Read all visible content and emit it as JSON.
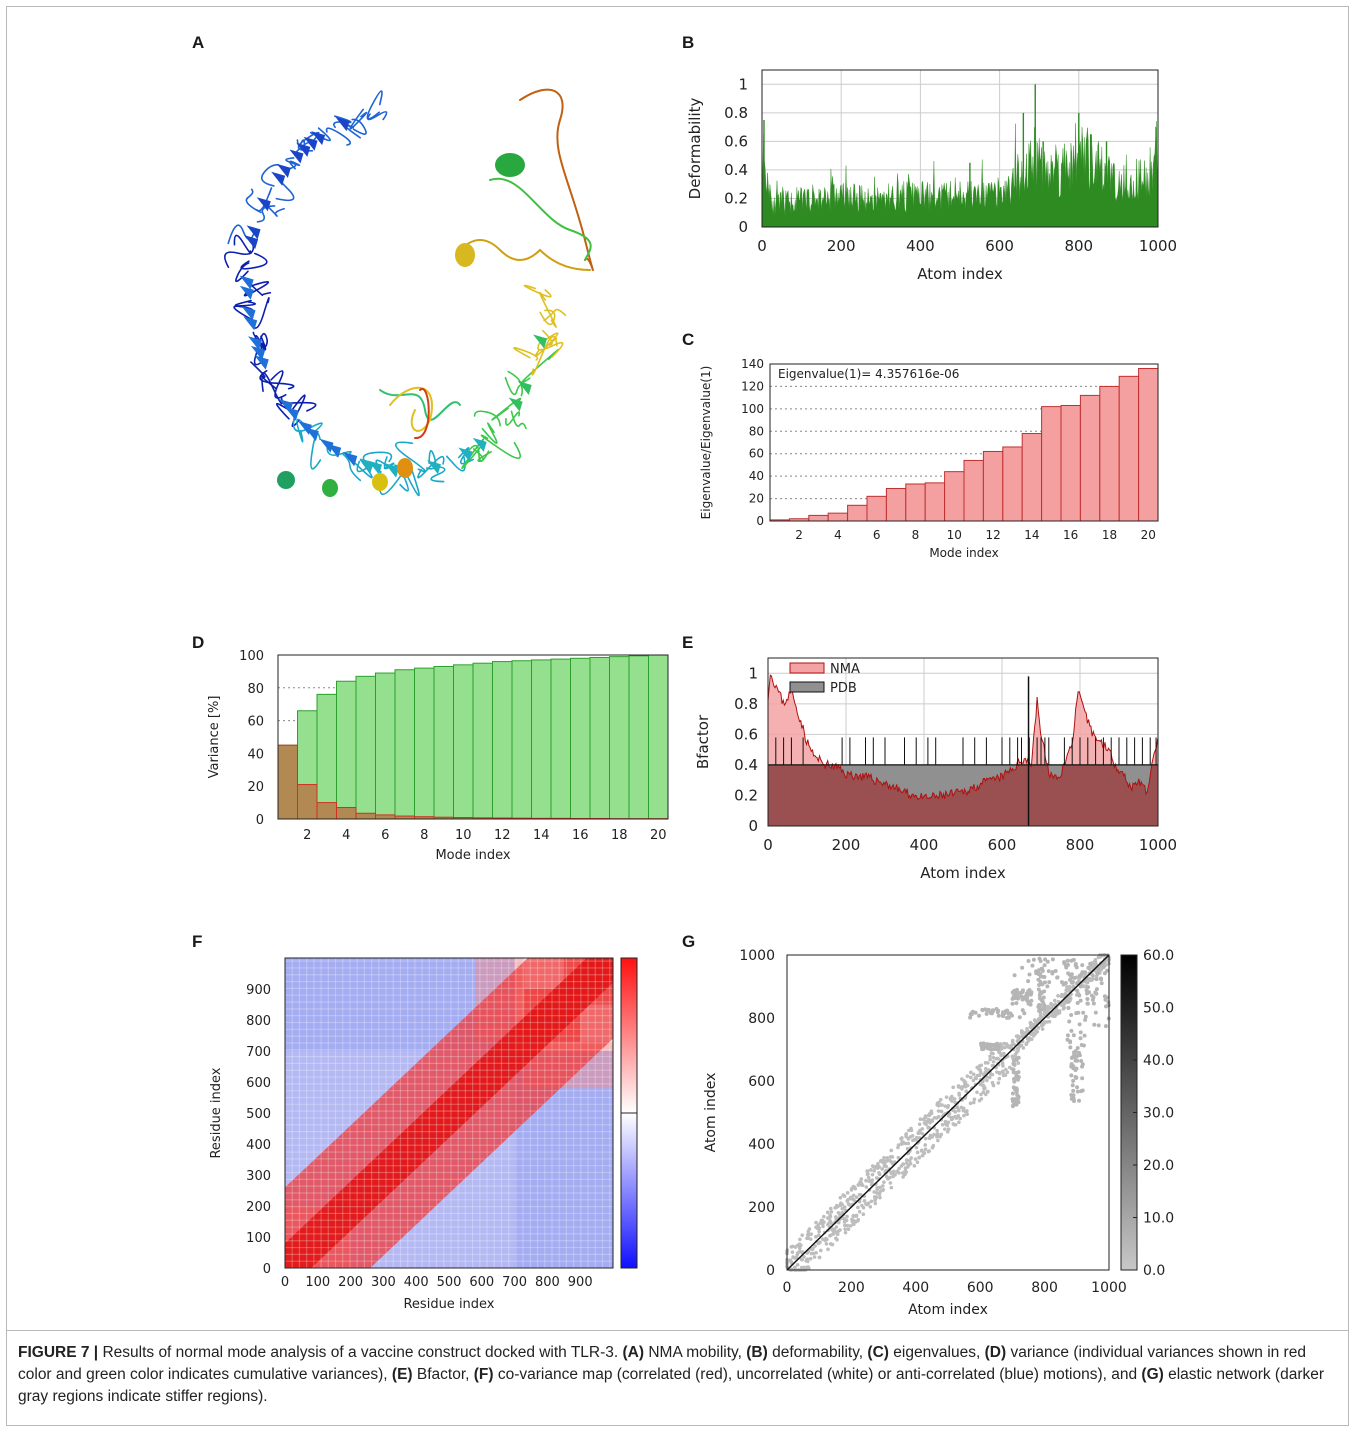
{
  "panels": {
    "A": "A",
    "B": "B",
    "C": "C",
    "D": "D",
    "E": "E",
    "F": "F",
    "G": "G"
  },
  "caption": {
    "figure_label": "FIGURE 7 |",
    "text_1": " Results of normal mode analysis of a vaccine construct docked with TLR-3. ",
    "A": "(A)",
    "text_A": " NMA mobility, ",
    "B": "(B)",
    "text_B": " deformability, ",
    "C": "(C)",
    "text_C": " eigenvalues, ",
    "D": "(D)",
    "text_D": " variance (individual variances shown in red color and green color indicates cumulative variances), ",
    "E": "(E)",
    "text_E": " Bfactor, ",
    "F": "(F)",
    "text_F": " co-variance map (correlated (red), uncorrelated (white) or anti-correlated (blue) motions), and ",
    "G": "(G)",
    "text_G": " elastic network (darker gray regions indicate stiffer regions)."
  },
  "colors": {
    "deform_green": "#2e8b22",
    "eig_fill": "#f4a0a0",
    "eig_edge": "#c03030",
    "var_green": "#95e08f",
    "var_green_edge": "#2ca02c",
    "var_brown": "#b5804d",
    "var_red_edge": "#d03020",
    "nma_fill": "#f3a3a3",
    "nma_line": "#b01010",
    "pdb_fill": "#909090",
    "pdb_overlap": "#9a5050"
  },
  "chart_data": [
    {
      "id": "B",
      "type": "area",
      "xlabel": "Atom index",
      "ylabel": "Deformability",
      "xlim": [
        0,
        1000
      ],
      "ylim": [
        0,
        1.1
      ],
      "xticks": [
        0,
        200,
        400,
        600,
        800,
        1000
      ],
      "yticks": [
        0,
        0.2,
        0.4,
        0.6,
        0.8,
        1
      ],
      "profile_x": [
        0,
        10,
        30,
        60,
        100,
        150,
        200,
        260,
        300,
        350,
        400,
        450,
        500,
        540,
        580,
        620,
        650,
        680,
        700,
        730,
        760,
        790,
        800,
        830,
        860,
        900,
        940,
        970,
        1000
      ],
      "profile_y": [
        0.72,
        0.55,
        0.2,
        0.24,
        0.26,
        0.28,
        0.3,
        0.26,
        0.28,
        0.3,
        0.3,
        0.28,
        0.34,
        0.3,
        0.3,
        0.34,
        0.5,
        0.62,
        0.7,
        0.5,
        0.58,
        0.65,
        0.8,
        0.6,
        0.52,
        0.48,
        0.42,
        0.5,
        0.7
      ],
      "peaks": [
        [
          5,
          0.75
        ],
        [
          690,
          1.0
        ],
        [
          660,
          0.8
        ],
        [
          800,
          0.8
        ],
        [
          710,
          0.6
        ],
        [
          830,
          0.65
        ],
        [
          870,
          0.6
        ],
        [
          525,
          0.45
        ],
        [
          995,
          0.7
        ]
      ]
    },
    {
      "id": "C",
      "type": "bar",
      "annotation": "Eigenvalue(1)= 4.357616e-06",
      "xlabel": "Mode index",
      "ylabel": "Eigenvalue/Eigenvalue(1)",
      "categories": [
        1,
        2,
        3,
        4,
        5,
        6,
        7,
        8,
        9,
        10,
        11,
        12,
        13,
        14,
        15,
        16,
        17,
        18,
        19,
        20
      ],
      "values": [
        1,
        2,
        5,
        7,
        14,
        22,
        29,
        33,
        34,
        44,
        54,
        62,
        66,
        78,
        102,
        103,
        112,
        120,
        129,
        136
      ],
      "ylim": [
        0,
        140
      ],
      "xticks": [
        2,
        4,
        6,
        8,
        10,
        12,
        14,
        16,
        18,
        20
      ],
      "yticks": [
        0,
        20,
        40,
        60,
        80,
        100,
        120,
        140
      ]
    },
    {
      "id": "D",
      "type": "bar",
      "xlabel": "Mode index",
      "ylabel": "Variance [%]",
      "categories": [
        1,
        2,
        3,
        4,
        5,
        6,
        7,
        8,
        9,
        10,
        11,
        12,
        13,
        14,
        15,
        16,
        17,
        18,
        19,
        20
      ],
      "series": [
        {
          "values": [
            45,
            66,
            76,
            84,
            87,
            89,
            91,
            92,
            93,
            94,
            95,
            96,
            96.5,
            97,
            97.5,
            98,
            98.5,
            99,
            99.5,
            100
          ]
        },
        {
          "values": [
            45,
            21,
            10,
            7,
            3.5,
            2.5,
            1.8,
            1.4,
            1.1,
            0.9,
            0.7,
            0.6,
            0.5,
            0.4,
            0.4,
            0.3,
            0.3,
            0.2,
            0.2,
            0.2
          ]
        }
      ],
      "ylim": [
        0,
        100
      ],
      "xticks": [
        2,
        4,
        6,
        8,
        10,
        12,
        14,
        16,
        18,
        20
      ],
      "yticks": [
        0,
        20,
        40,
        60,
        80,
        100
      ]
    },
    {
      "id": "E",
      "type": "area",
      "xlabel": "Atom index",
      "ylabel": "Bfactor",
      "xlim": [
        0,
        1000
      ],
      "ylim": [
        0,
        1.1
      ],
      "xticks": [
        0,
        200,
        400,
        600,
        800,
        1000
      ],
      "yticks": [
        0,
        0.2,
        0.4,
        0.6,
        0.8,
        1
      ],
      "legend": [
        "NMA",
        "PDB"
      ],
      "nma_x": [
        0,
        5,
        20,
        40,
        60,
        80,
        100,
        120,
        150,
        180,
        200,
        250,
        300,
        350,
        400,
        450,
        500,
        550,
        600,
        630,
        660,
        675,
        690,
        700,
        720,
        740,
        760,
        780,
        795,
        810,
        830,
        850,
        870,
        890,
        910,
        930,
        950,
        970,
        990,
        1000
      ],
      "nma_y": [
        0.85,
        1.0,
        0.92,
        0.8,
        0.88,
        0.72,
        0.55,
        0.45,
        0.4,
        0.38,
        0.34,
        0.32,
        0.28,
        0.22,
        0.18,
        0.2,
        0.22,
        0.28,
        0.32,
        0.38,
        0.45,
        0.4,
        0.82,
        0.6,
        0.35,
        0.3,
        0.4,
        0.55,
        0.88,
        0.75,
        0.62,
        0.55,
        0.52,
        0.4,
        0.35,
        0.25,
        0.3,
        0.22,
        0.45,
        0.6
      ],
      "pdb_base": 0.4,
      "pdb_spikes": [
        20,
        40,
        60,
        90,
        190,
        210,
        250,
        270,
        300,
        350,
        380,
        410,
        430,
        500,
        530,
        560,
        600,
        620,
        640,
        650,
        670,
        690,
        700,
        710,
        720,
        760,
        780,
        800,
        820,
        840,
        860,
        880,
        900,
        920,
        940,
        960,
        980,
        995
      ],
      "vline": 668
    },
    {
      "id": "F",
      "type": "heatmap",
      "xlabel": "Residue index",
      "ylabel": "Residue index",
      "xlim": [
        0,
        1000
      ],
      "ylim": [
        0,
        1000
      ],
      "xticks": [
        0,
        100,
        200,
        300,
        400,
        500,
        600,
        700,
        800,
        900
      ],
      "yticks": [
        0,
        100,
        200,
        300,
        400,
        500,
        600,
        700,
        800,
        900
      ]
    },
    {
      "id": "G",
      "type": "scatter",
      "xlabel": "Atom index",
      "ylabel": "Atom index",
      "xlim": [
        0,
        1000
      ],
      "ylim": [
        0,
        1000
      ],
      "xticks": [
        0,
        200,
        400,
        600,
        800,
        1000
      ],
      "yticks": [
        0,
        200,
        400,
        600,
        800,
        1000
      ],
      "colorbar_ticks": [
        "0.0",
        "10.0",
        "20.0",
        "30.0",
        "40.0",
        "50.0",
        "60.0"
      ]
    }
  ]
}
